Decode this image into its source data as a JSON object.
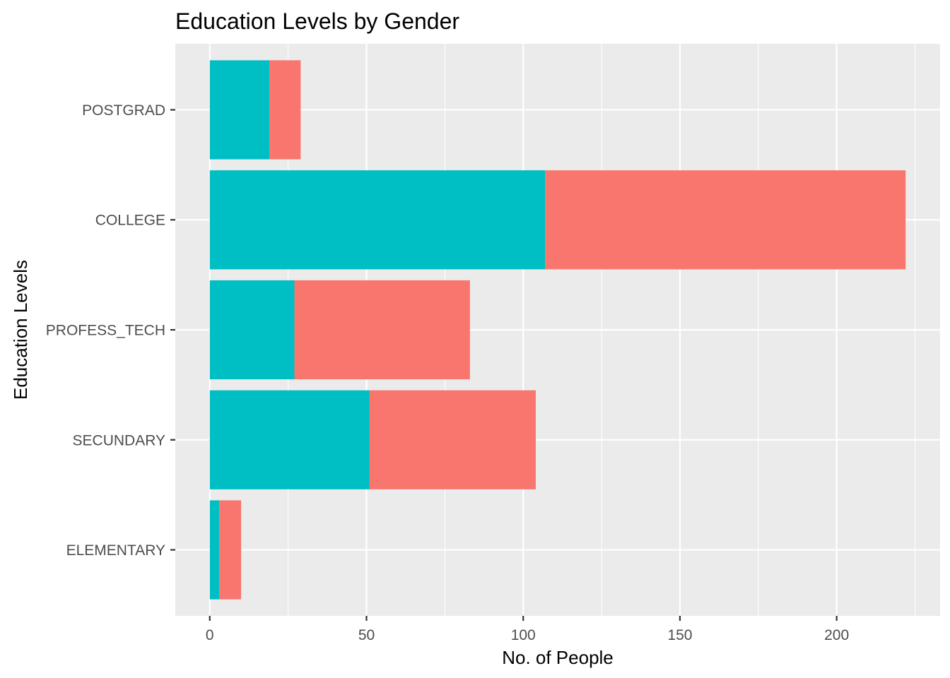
{
  "chart_data": {
    "type": "bar",
    "orientation": "horizontal",
    "stacked": true,
    "title": "Education Levels by Gender",
    "xlabel": "No. of People",
    "ylabel": "Education Levels",
    "categories": [
      "ELEMENTARY",
      "SECUNDARY",
      "PROFESS_TECH",
      "COLLEGE",
      "POSTGRAD"
    ],
    "series": [
      {
        "values": [
          3,
          51,
          27,
          107,
          19
        ],
        "color": "#00BFC4"
      },
      {
        "values": [
          7,
          53,
          56,
          115,
          10
        ],
        "color": "#F8766D"
      }
    ],
    "xlim": [
      -11,
      233
    ],
    "xticks": [
      0,
      50,
      100,
      150,
      200
    ],
    "grid": true,
    "panel_background": "#EBEBEB",
    "grid_color": "#FFFFFF",
    "legend": "none"
  }
}
